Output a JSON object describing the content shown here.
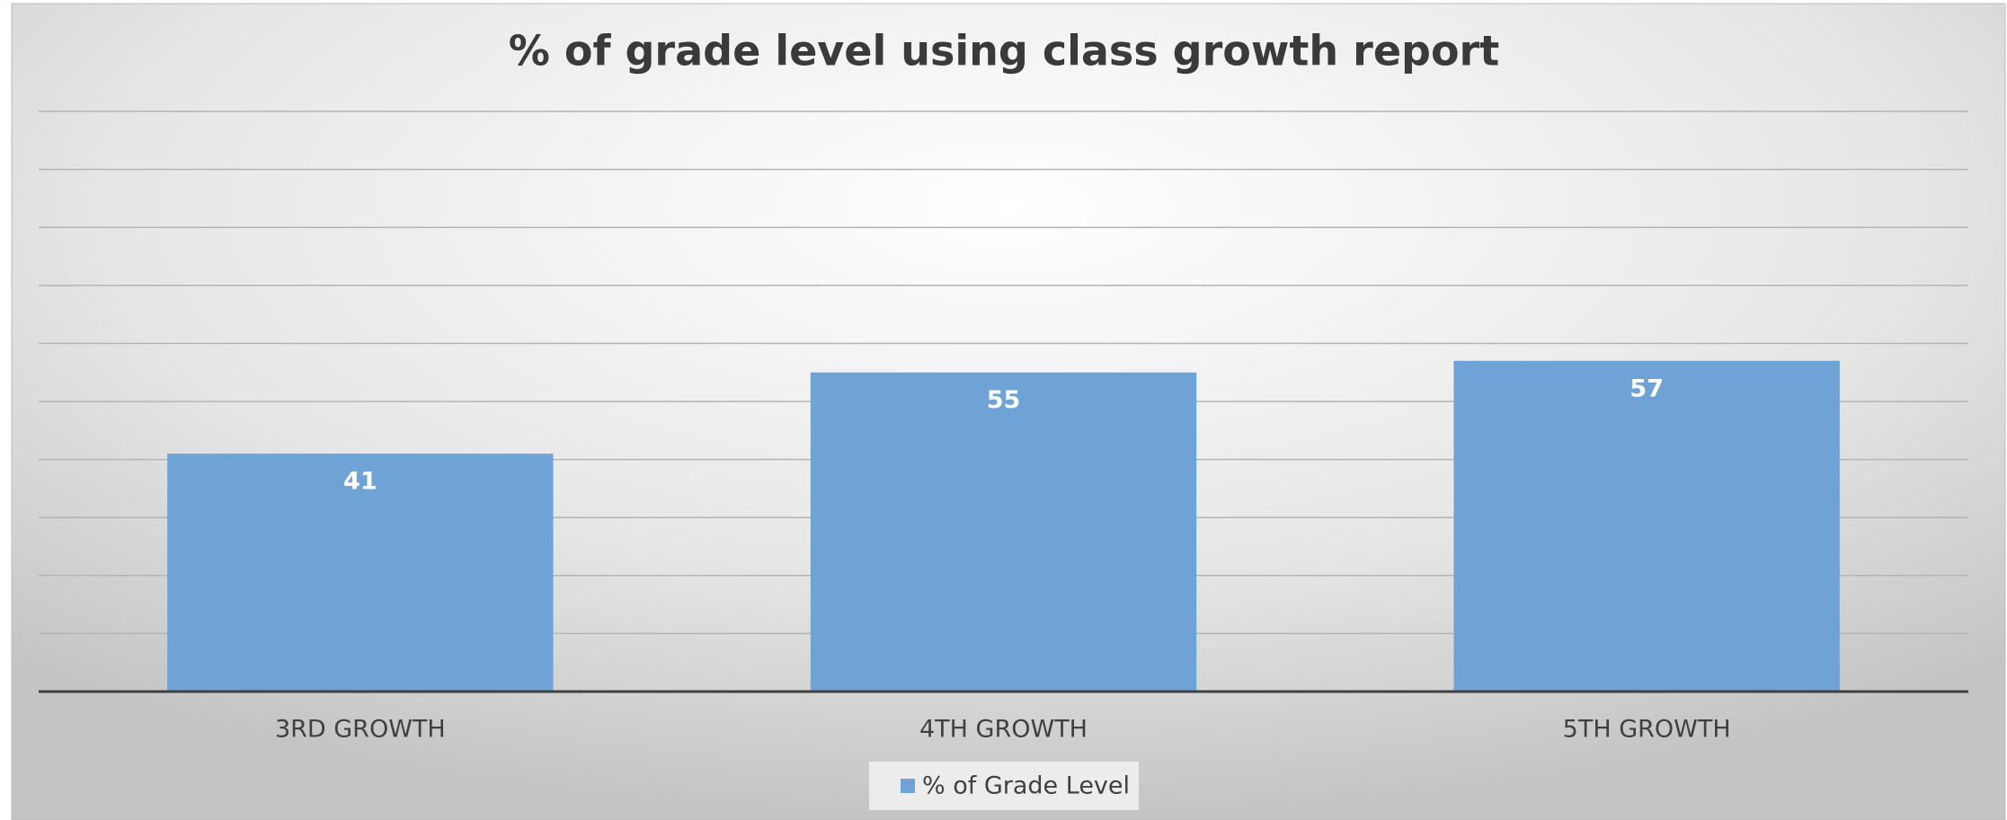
{
  "chart_data": {
    "type": "bar",
    "title": "% of grade level using class growth report",
    "categories": [
      "3RD GROWTH",
      "4TH GROWTH",
      "5TH GROWTH"
    ],
    "series": [
      {
        "name": "% of Grade Level",
        "color": "#6fa3d6",
        "values": [
          41,
          55,
          57
        ]
      }
    ],
    "ylim": [
      0,
      100
    ],
    "yticks": [
      0,
      10,
      20,
      30,
      40,
      50,
      60,
      70,
      80,
      90,
      100
    ],
    "grid": true,
    "legend": "bottom"
  }
}
